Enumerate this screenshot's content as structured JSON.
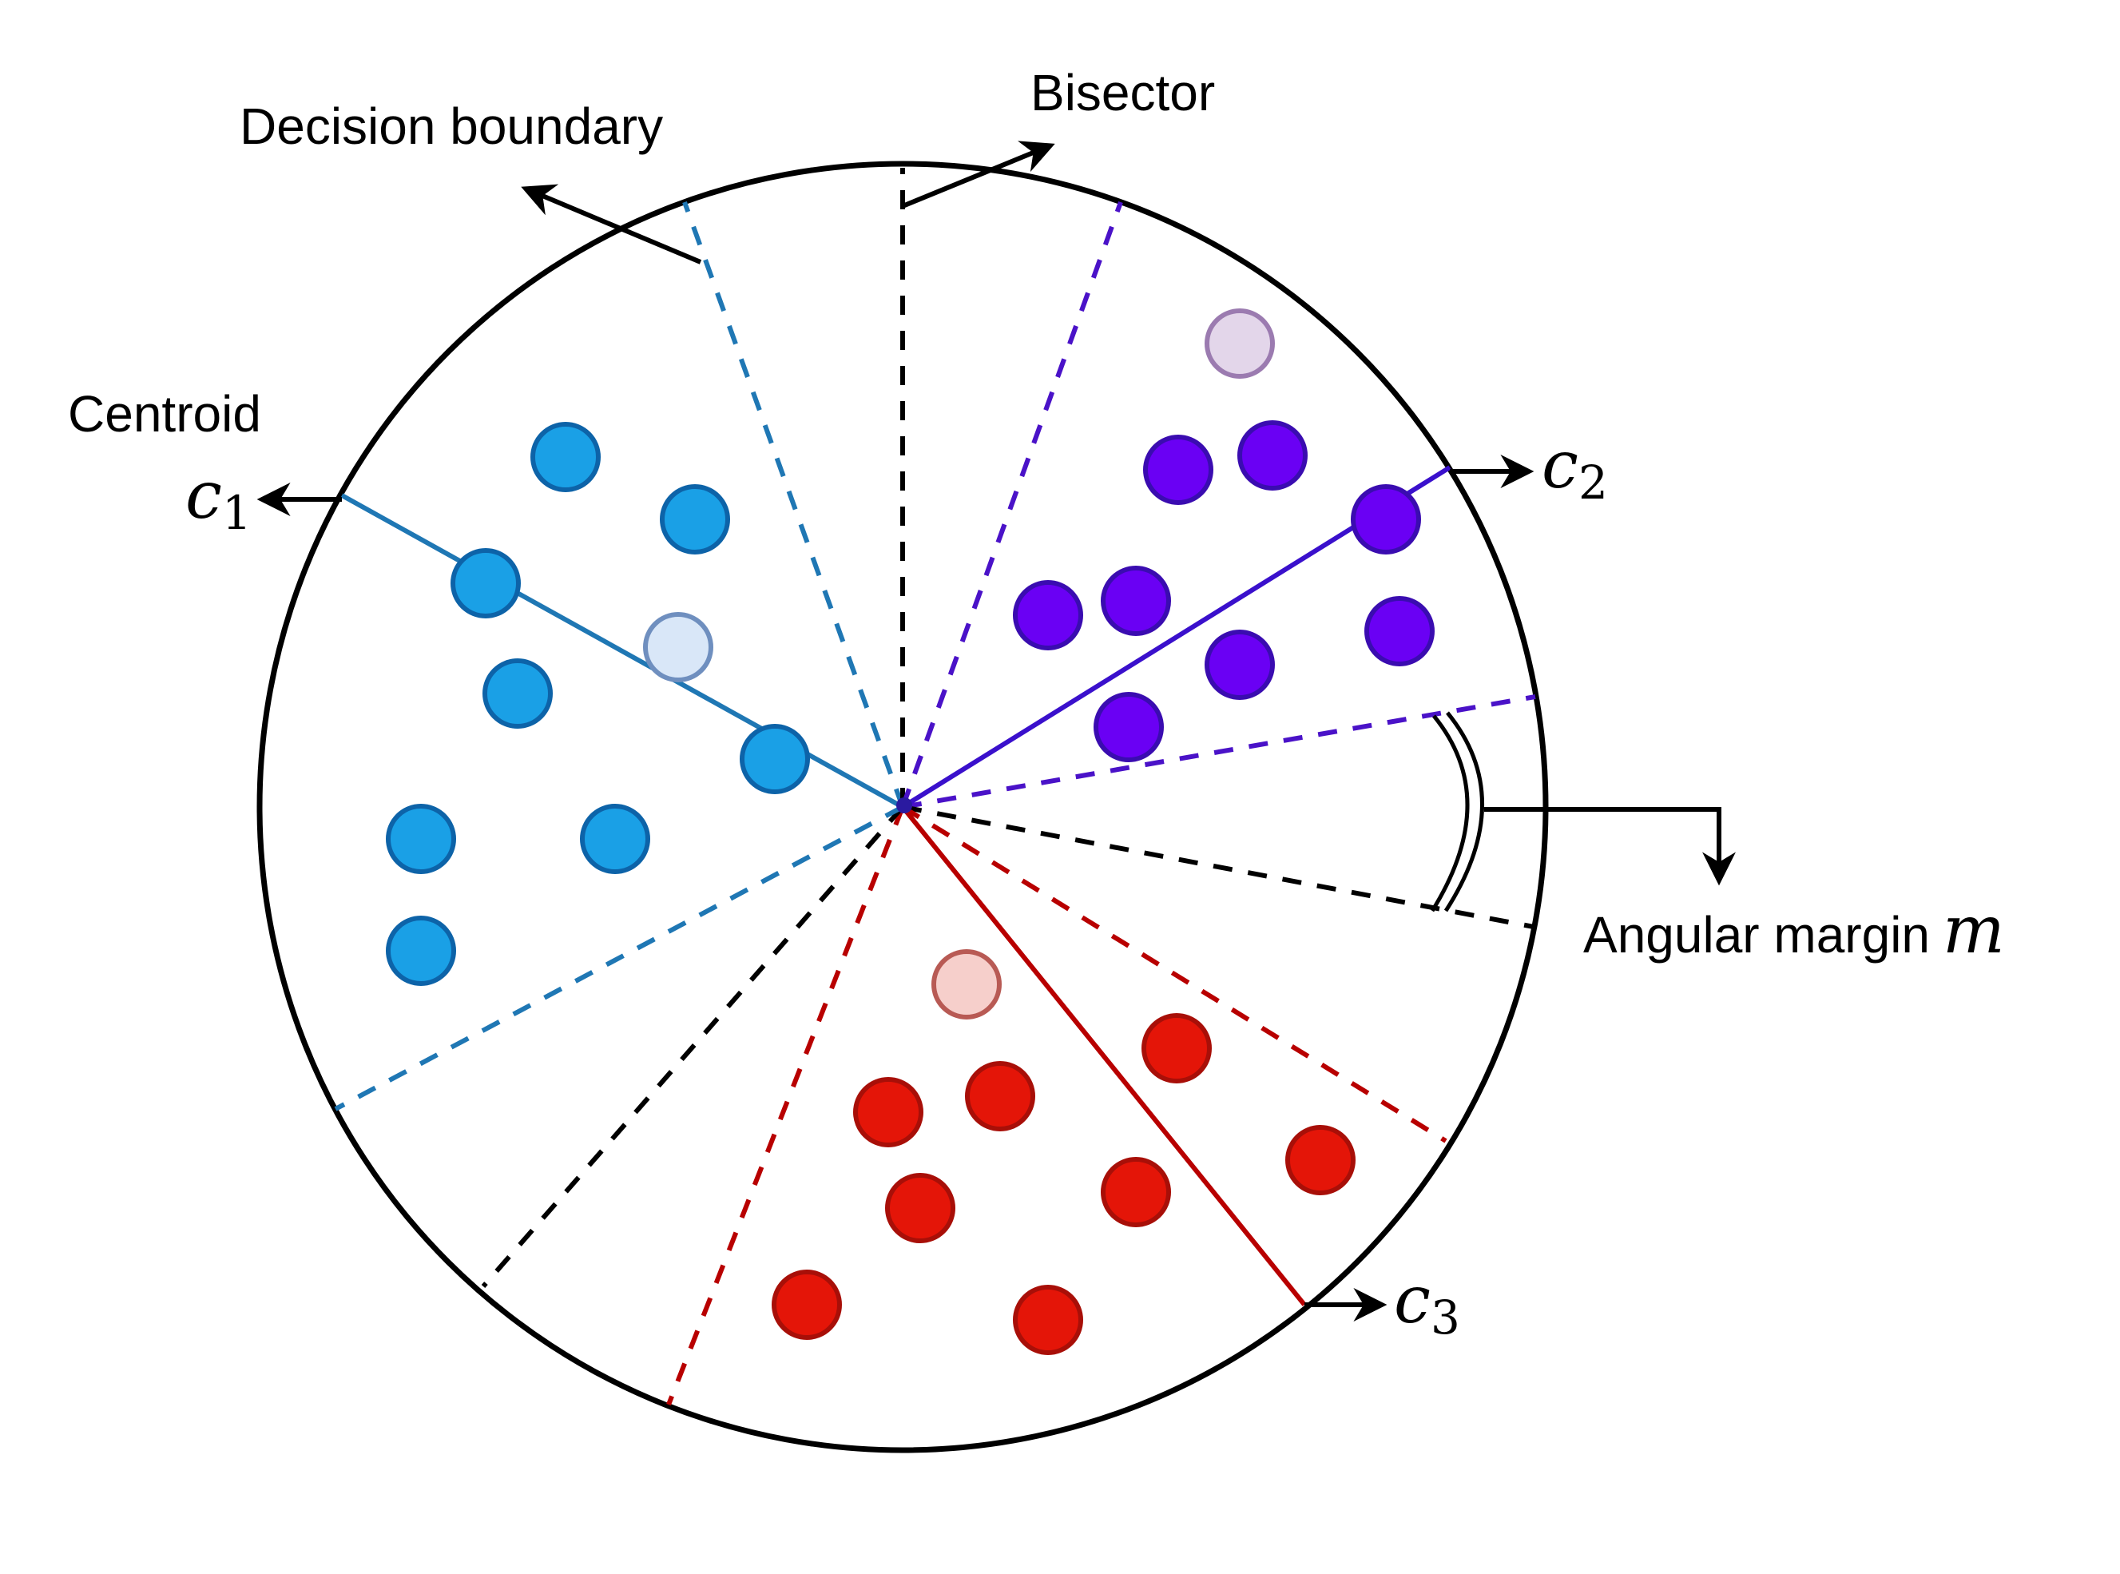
{
  "labels": {
    "decision_boundary": "Decision boundary",
    "bisector": "Bisector",
    "centroid": "Centroid",
    "angular_margin": "Angular margin",
    "margin_symbol": "m"
  },
  "centroids": [
    {
      "id": "c1",
      "symbol": "c",
      "subscript": "1",
      "color": "#1f77b4"
    },
    {
      "id": "c2",
      "symbol": "c",
      "subscript": "2",
      "color": "#3a10cc"
    },
    {
      "id": "c3",
      "symbol": "c",
      "subscript": "3",
      "color": "#b80000"
    }
  ],
  "colors": {
    "class1_fill": "#1aa0e6",
    "class1_stroke": "#0d63a8",
    "class1_light_fill": "#d9e7f8",
    "class1_light_stroke": "#6f8fbf",
    "class2_fill": "#6a00f4",
    "class2_stroke": "#3a0cb0",
    "class2_light_fill": "#e3d6ea",
    "class2_light_stroke": "#9b7bb0",
    "class3_fill": "#e41508",
    "class3_stroke": "#a80f08",
    "class3_light_fill": "#f6cfcb",
    "class3_light_stroke": "#b85a54",
    "bisector": "#000000",
    "circle": "#000000"
  }
}
